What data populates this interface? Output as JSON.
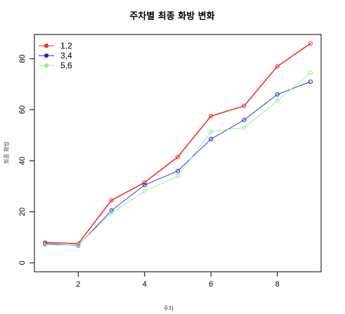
{
  "chart_data": {
    "type": "line",
    "title": "주차별 최종 화방 변화",
    "xlabel": "주차",
    "ylabel": "최종 화방",
    "x": [
      1,
      2,
      3,
      4,
      5,
      6,
      7,
      8,
      9
    ],
    "xticks": [
      2,
      4,
      6,
      8
    ],
    "yticks": [
      0,
      20,
      40,
      60,
      80
    ],
    "xlim": [
      0.68,
      9.32
    ],
    "ylim": [
      -3.5,
      89.5
    ],
    "grid": false,
    "legend": "top-left",
    "series": [
      {
        "name": "1,2",
        "color": "#e8342e",
        "values": [
          8.0,
          7.5,
          24.5,
          31.5,
          41.5,
          57.5,
          61.5,
          77.0,
          86.0
        ]
      },
      {
        "name": "3,4",
        "color": "#2222dd",
        "values": [
          7.5,
          6.8,
          20.5,
          30.5,
          36.0,
          48.5,
          56.0,
          66.0,
          71.0
        ]
      },
      {
        "name": "5,6",
        "color": "#90ee90",
        "values": [
          7.0,
          7.0,
          19.5,
          28.0,
          34.0,
          51.5,
          53.0,
          63.5,
          74.5
        ]
      }
    ]
  }
}
